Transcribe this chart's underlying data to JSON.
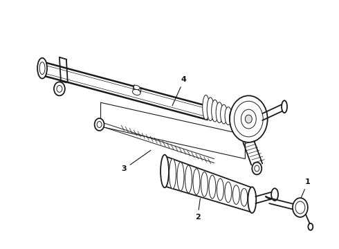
{
  "background_color": "#ffffff",
  "line_color": "#1a1a1a",
  "label_color": "#111111",
  "figsize": [
    4.9,
    3.6
  ],
  "dpi": 100,
  "label_fontsize": 8,
  "lw_main": 1.3,
  "lw_thin": 0.7,
  "lw_thick": 1.8
}
